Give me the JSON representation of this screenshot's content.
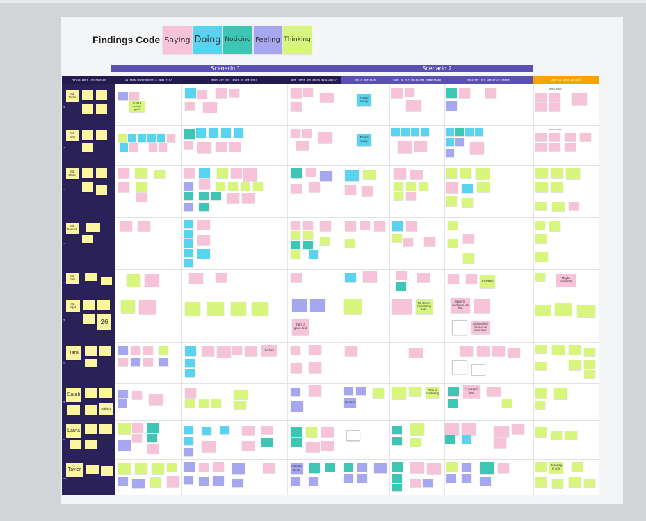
{
  "legend": {
    "title": "Findings Code",
    "chips": [
      {
        "label": "Saying",
        "color": "#f7c3d9"
      },
      {
        "label": "Doing",
        "color": "#5ad3f0"
      },
      {
        "label": "Noticing",
        "color": "#3ec6b4"
      },
      {
        "label": "Feeling",
        "color": "#a7a7ef"
      },
      {
        "label": "Thinking",
        "color": "#d8f57d"
      }
    ]
  },
  "scenarios": [
    "Scenario 1",
    "Scenario 2"
  ],
  "columns": [
    "Participant Information",
    "Is this environment a good fit?",
    "What are the costs of the gym?",
    "Are there any deals available?",
    "Ask a question",
    "Sign up for unlimited membership",
    "Register for specific classes",
    "Overall Observations"
  ],
  "participants": [
    {
      "id": "P1",
      "name": "Ind. Taylor"
    },
    {
      "id": "P2",
      "name": "Ind. Seth"
    },
    {
      "id": "P3",
      "name": "Ind. Ethan"
    },
    {
      "id": "P4",
      "name": "Ind. Bennett"
    },
    {
      "id": "P5",
      "name": "Ind. Dale"
    },
    {
      "id": "P6",
      "name": "Ind. Elijah"
    },
    {
      "id": "P7",
      "name": "Tara"
    },
    {
      "id": "P8",
      "name": "Sarah"
    },
    {
      "id": "P9",
      "name": "Laura"
    },
    {
      "id": "P10",
      "name": "Taylor"
    }
  ],
  "labels": {
    "must_haves": "MUSTHAVES",
    "must_haves_2": "MUSTHAVES",
    "found_easily": "Found easily",
    "found_easily_2": "Found easily",
    "is_this_smooth": "Is this a smooth goal?",
    "thats_a_good_deal": "that's a good deal",
    "clumsy": "Clumsy",
    "age": "26",
    "neutral": "Neutral",
    "patient": "patient",
    "i_like_the_treats": "I like the treats",
    "branding_is_cool": "Branding is cool",
    "no_issues": "No issues completing task",
    "this_is_confusing": "This is confusing",
    "i_missed_that": "\"I missed that\"",
    "want_to_workouts": "Want to workouts tab first",
    "did_not_find": "Did not find classes on their own",
    "cheap": "cheap",
    "maybe": "Maybe unreliable",
    "bad_ux": "So bad"
  }
}
